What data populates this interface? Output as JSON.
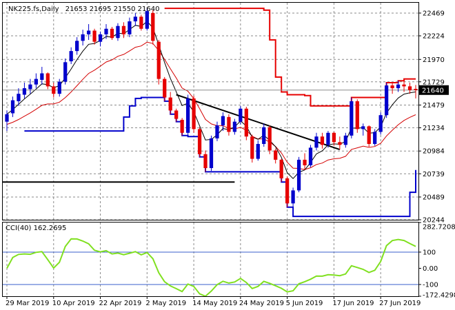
{
  "chart_data": [
    {
      "type": "candlestick",
      "symbol": "NK225.fs,Daily",
      "ohlc_label": "21653 21695 21550 21640",
      "current_price": 21640,
      "current_price_label": "21640",
      "ylim": [
        20244,
        22580
      ],
      "y_ticks": [
        {
          "value": 22469,
          "label": "22469"
        },
        {
          "value": 22224,
          "label": "22224"
        },
        {
          "value": 21970,
          "label": "21970"
        },
        {
          "value": 21729,
          "label": "21729"
        },
        {
          "value": 21479,
          "label": "21479"
        },
        {
          "value": 21234,
          "label": "21234"
        },
        {
          "value": 20984,
          "label": "20984"
        },
        {
          "value": 20739,
          "label": "20739"
        },
        {
          "value": 20489,
          "label": "20489"
        },
        {
          "value": 20244,
          "label": "20244"
        }
      ],
      "x_ticks": [
        {
          "index": 0,
          "label": "29 Mar 2019"
        },
        {
          "index": 8,
          "label": "10 Apr 2019"
        },
        {
          "index": 16,
          "label": "22 Apr 2019"
        },
        {
          "index": 24,
          "label": "2 May 2019"
        },
        {
          "index": 32,
          "label": "14 May 2019"
        },
        {
          "index": 40,
          "label": "24 May 2019"
        },
        {
          "index": 48,
          "label": "5 Jun 2019"
        },
        {
          "index": 56,
          "label": "17 Jun 2019"
        },
        {
          "index": 64,
          "label": "27 Jun 2019"
        }
      ],
      "candles": [
        [
          21300,
          21420,
          21200,
          21380
        ],
        [
          21390,
          21570,
          21350,
          21530
        ],
        [
          21520,
          21660,
          21470,
          21600
        ],
        [
          21590,
          21720,
          21550,
          21660
        ],
        [
          21650,
          21760,
          21600,
          21700
        ],
        [
          21700,
          21820,
          21660,
          21760
        ],
        [
          21750,
          21890,
          21700,
          21820
        ],
        [
          21820,
          21830,
          21650,
          21680
        ],
        [
          21680,
          21720,
          21560,
          21600
        ],
        [
          21600,
          21760,
          21570,
          21730
        ],
        [
          21730,
          21980,
          21700,
          21940
        ],
        [
          21950,
          22100,
          21920,
          22060
        ],
        [
          22060,
          22210,
          22020,
          22170
        ],
        [
          22170,
          22290,
          22120,
          22240
        ],
        [
          22240,
          22350,
          22180,
          22280
        ],
        [
          22280,
          22300,
          22130,
          22160
        ],
        [
          22160,
          22270,
          22110,
          22240
        ],
        [
          22240,
          22350,
          22190,
          22300
        ],
        [
          22300,
          22320,
          22180,
          22200
        ],
        [
          22200,
          22360,
          22170,
          22330
        ],
        [
          22330,
          22370,
          22200,
          22240
        ],
        [
          22240,
          22420,
          22210,
          22380
        ],
        [
          22380,
          22470,
          22330,
          22430
        ],
        [
          22430,
          22450,
          22280,
          22300
        ],
        [
          22300,
          22520,
          22280,
          22490
        ],
        [
          22470,
          22500,
          22130,
          22170
        ],
        [
          22160,
          22180,
          21700,
          21760
        ],
        [
          21760,
          21780,
          21520,
          21560
        ],
        [
          21560,
          21620,
          21380,
          21420
        ],
        [
          21420,
          21440,
          21300,
          21330
        ],
        [
          21320,
          21340,
          21150,
          21180
        ],
        [
          21180,
          21590,
          21140,
          21550
        ],
        [
          21550,
          21580,
          21180,
          21220
        ],
        [
          21220,
          21240,
          20920,
          20950
        ],
        [
          20950,
          20990,
          20760,
          20800
        ],
        [
          20800,
          21150,
          20770,
          21120
        ],
        [
          21120,
          21300,
          21090,
          21260
        ],
        [
          21260,
          21400,
          21200,
          21360
        ],
        [
          21350,
          21380,
          21150,
          21190
        ],
        [
          21190,
          21330,
          21160,
          21300
        ],
        [
          21300,
          21470,
          21270,
          21440
        ],
        [
          21440,
          21460,
          21100,
          21140
        ],
        [
          21140,
          21160,
          20860,
          20900
        ],
        [
          20900,
          21100,
          20880,
          21060
        ],
        [
          21060,
          21280,
          21030,
          21240
        ],
        [
          21240,
          21260,
          20950,
          20990
        ],
        [
          20990,
          21010,
          20850,
          20890
        ],
        [
          20890,
          20900,
          20650,
          20690
        ],
        [
          20690,
          20710,
          20380,
          20420
        ],
        [
          20420,
          20590,
          20280,
          20560
        ],
        [
          20560,
          20920,
          20540,
          20890
        ],
        [
          20890,
          20960,
          20780,
          20830
        ],
        [
          20830,
          21050,
          20810,
          21020
        ],
        [
          21020,
          21180,
          20990,
          21140
        ],
        [
          21140,
          21180,
          21010,
          21050
        ],
        [
          21050,
          21200,
          21020,
          21180
        ],
        [
          21180,
          21190,
          21040,
          21080
        ],
        [
          21080,
          21140,
          21000,
          21050
        ],
        [
          21050,
          21180,
          21020,
          21150
        ],
        [
          21150,
          21560,
          21120,
          21520
        ],
        [
          21520,
          21540,
          21180,
          21220
        ],
        [
          21220,
          21280,
          21150,
          21250
        ],
        [
          21250,
          21260,
          21030,
          21060
        ],
        [
          21060,
          21220,
          21040,
          21190
        ],
        [
          21190,
          21400,
          21160,
          21370
        ],
        [
          21370,
          21720,
          21340,
          21690
        ],
        [
          21690,
          21720,
          21600,
          21660
        ],
        [
          21660,
          21740,
          21620,
          21700
        ],
        [
          21700,
          21760,
          21620,
          21680
        ],
        [
          21680,
          21720,
          21600,
          21640
        ],
        [
          21653,
          21695,
          21550,
          21640
        ]
      ]
    },
    {
      "type": "line",
      "indicator": "CCI(40)",
      "label": "CCI(40) 162.2695",
      "ylim": [
        -172.4298,
        282.7208
      ],
      "y_ticks": [
        {
          "value": 282.7208,
          "label": "282.7208"
        },
        {
          "value": 100,
          "label": "100"
        },
        {
          "value": 0,
          "label": "0.00"
        },
        {
          "value": -100,
          "label": "-100"
        },
        {
          "value": -172.4298,
          "label": "-172.4298"
        }
      ],
      "levels": [
        100,
        -100
      ]
    }
  ],
  "colors": {
    "bull_candle": "#0000cc",
    "bear_candle": "#e60000",
    "ma_fast": "#000000",
    "ma_slow": "#d40000",
    "channel_low": "#0000cc",
    "channel_high": "#e60000",
    "cci_line": "#80e020",
    "cci_levels": "#3a5fcd"
  }
}
